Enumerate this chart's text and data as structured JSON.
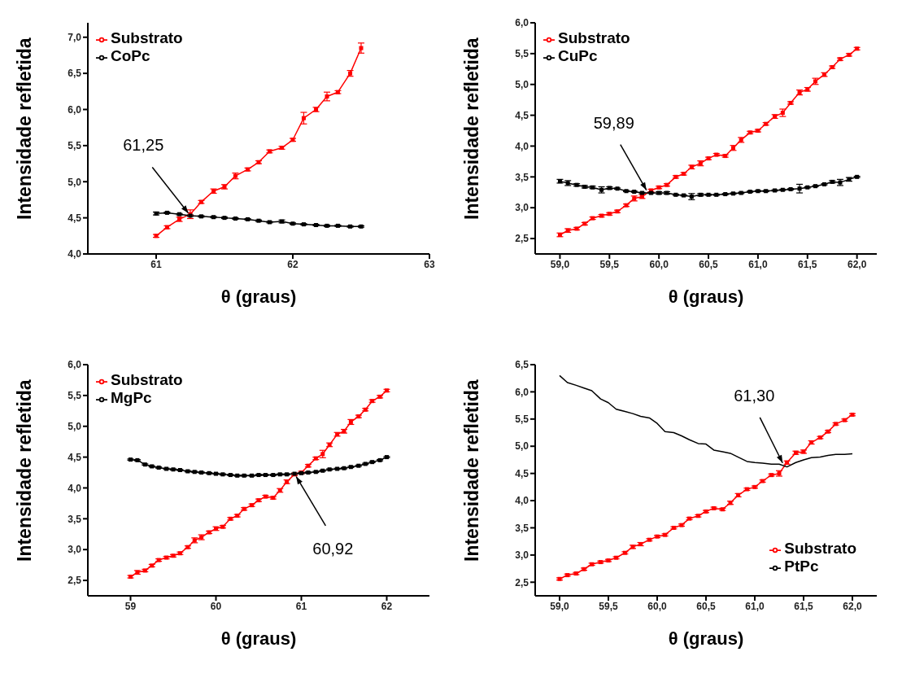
{
  "chart_data": [
    {
      "type": "line",
      "xlabel": "θ (graus)",
      "ylabel": "Intensidade refletida",
      "legend": "top left",
      "marker": "square",
      "line_style": "solid",
      "grid": false,
      "xlim": [
        60.5,
        63
      ],
      "xticks": [
        61,
        62,
        63
      ],
      "ylim": [
        4.0,
        7.2
      ],
      "yticks": [
        {
          "value": 4.0,
          "label": "4,0"
        },
        {
          "value": 4.5,
          "label": "4,5"
        },
        {
          "value": 5.0,
          "label": "5,0"
        },
        {
          "value": 5.5,
          "label": "5,5"
        },
        {
          "value": 6.0,
          "label": "6,0"
        },
        {
          "value": 6.5,
          "label": "6,5"
        },
        {
          "value": 7.0,
          "label": "7,0"
        }
      ],
      "x": [
        61,
        61.08,
        61.17,
        61.25,
        61.33,
        61.42,
        61.5,
        61.58,
        61.67,
        61.75,
        61.83,
        61.92,
        62,
        62.08,
        62.17,
        62.25,
        62.33,
        62.42,
        62.5
      ],
      "annotations": [
        {
          "text": "61,25",
          "x": 61.25,
          "y": 4.53
        }
      ],
      "series": [
        {
          "name": "Substrato",
          "color": "#ff0000",
          "values": [
            4.25,
            4.37,
            4.48,
            4.55,
            4.72,
            4.87,
            4.93,
            5.08,
            5.17,
            5.27,
            5.42,
            5.47,
            5.58,
            5.88,
            6.0,
            6.18,
            6.24,
            6.5,
            6.85
          ],
          "errors": [
            0.02,
            0.02,
            0.03,
            0.06,
            0.02,
            0.03,
            0.03,
            0.04,
            0.02,
            0.02,
            0.02,
            0.02,
            0.02,
            0.08,
            0.03,
            0.06,
            0.02,
            0.04,
            0.07
          ]
        },
        {
          "name": "CoPc",
          "color": "#000000",
          "values": [
            4.56,
            4.57,
            4.55,
            4.53,
            4.52,
            4.51,
            4.5,
            4.49,
            4.48,
            4.46,
            4.44,
            4.45,
            4.42,
            4.41,
            4.4,
            4.39,
            4.39,
            4.38,
            4.38
          ],
          "errors": [
            0.02,
            0.01,
            0.01,
            0.01,
            0.01,
            0.01,
            0.01,
            0.01,
            0.01,
            0.01,
            0.01,
            0.02,
            0.01,
            0.01,
            0.01,
            0.01,
            0.01,
            0.01,
            0.01
          ]
        }
      ]
    },
    {
      "type": "line",
      "xlabel": "θ (graus)",
      "ylabel": "Intensidade refletida",
      "legend": "top left",
      "marker": "square",
      "line_style": "solid",
      "grid": false,
      "xlim": [
        58.75,
        62.2
      ],
      "xticks": [
        {
          "value": 59,
          "label": "59,0"
        },
        {
          "value": 59.5,
          "label": "59,5"
        },
        {
          "value": 60,
          "label": "60,0"
        },
        {
          "value": 60.5,
          "label": "60,5"
        },
        {
          "value": 61,
          "label": "61,0"
        },
        {
          "value": 61.5,
          "label": "61,5"
        },
        {
          "value": 62,
          "label": "62,0"
        }
      ],
      "ylim": [
        2.25,
        6.0
      ],
      "yticks": [
        {
          "value": 2.5,
          "label": "2,5"
        },
        {
          "value": 3.0,
          "label": "3,0"
        },
        {
          "value": 3.5,
          "label": "3,5"
        },
        {
          "value": 4.0,
          "label": "4,0"
        },
        {
          "value": 4.5,
          "label": "4,5"
        },
        {
          "value": 5.0,
          "label": "5,0"
        },
        {
          "value": 5.5,
          "label": "5,5"
        },
        {
          "value": 6.0,
          "label": "6,0"
        }
      ],
      "x": [
        59,
        59.08,
        59.17,
        59.25,
        59.33,
        59.42,
        59.5,
        59.58,
        59.67,
        59.75,
        59.83,
        59.92,
        60,
        60.08,
        60.17,
        60.25,
        60.33,
        60.42,
        60.5,
        60.58,
        60.67,
        60.75,
        60.83,
        60.92,
        61,
        61.08,
        61.17,
        61.25,
        61.33,
        61.42,
        61.5,
        61.58,
        61.67,
        61.75,
        61.83,
        61.92,
        62
      ],
      "annotations": [
        {
          "text": "59,89",
          "x": 59.89,
          "y": 3.24
        }
      ],
      "series": [
        {
          "name": "Substrato",
          "color": "#ff0000",
          "values": [
            2.56,
            2.63,
            2.66,
            2.74,
            2.83,
            2.87,
            2.9,
            2.94,
            3.04,
            3.15,
            3.18,
            3.28,
            3.33,
            3.37,
            3.5,
            3.55,
            3.66,
            3.72,
            3.8,
            3.86,
            3.84,
            3.97,
            4.1,
            4.22,
            4.25,
            4.36,
            4.48,
            4.54,
            4.7,
            4.87,
            4.92,
            5.05,
            5.16,
            5.28,
            5.41,
            5.48,
            5.58
          ],
          "errors": [
            0.03,
            0.03,
            0.02,
            0.02,
            0.02,
            0.02,
            0.02,
            0.02,
            0.02,
            0.04,
            0.03,
            0.02,
            0.02,
            0.02,
            0.02,
            0.02,
            0.03,
            0.04,
            0.02,
            0.02,
            0.02,
            0.04,
            0.04,
            0.02,
            0.02,
            0.02,
            0.03,
            0.06,
            0.02,
            0.04,
            0.03,
            0.05,
            0.03,
            0.02,
            0.02,
            0.02,
            0.02
          ]
        },
        {
          "name": "CuPc",
          "color": "#000000",
          "values": [
            3.43,
            3.4,
            3.37,
            3.34,
            3.33,
            3.29,
            3.32,
            3.31,
            3.27,
            3.26,
            3.24,
            3.24,
            3.24,
            3.24,
            3.21,
            3.2,
            3.18,
            3.21,
            3.21,
            3.21,
            3.22,
            3.23,
            3.24,
            3.26,
            3.27,
            3.27,
            3.28,
            3.29,
            3.3,
            3.31,
            3.33,
            3.35,
            3.38,
            3.42,
            3.41,
            3.46,
            3.5
          ],
          "errors": [
            0.03,
            0.04,
            0.02,
            0.02,
            0.02,
            0.05,
            0.02,
            0.01,
            0.01,
            0.01,
            0.01,
            0.01,
            0.02,
            0.02,
            0.01,
            0.01,
            0.05,
            0.02,
            0.01,
            0.01,
            0.01,
            0.01,
            0.01,
            0.01,
            0.01,
            0.01,
            0.01,
            0.01,
            0.01,
            0.07,
            0.01,
            0.01,
            0.01,
            0.02,
            0.05,
            0.03,
            0.01
          ]
        }
      ]
    },
    {
      "type": "line",
      "xlabel": "θ (graus)",
      "ylabel": "Intensidade refletida",
      "legend": "top left",
      "marker": "square",
      "line_style": "solid",
      "grid": false,
      "xlim": [
        58.5,
        62.5
      ],
      "xticks": [
        59,
        60,
        61,
        62
      ],
      "ylim": [
        2.25,
        6.0
      ],
      "yticks": [
        {
          "value": 2.5,
          "label": "2,5"
        },
        {
          "value": 3.0,
          "label": "3,0"
        },
        {
          "value": 3.5,
          "label": "3,5"
        },
        {
          "value": 4.0,
          "label": "4,0"
        },
        {
          "value": 4.5,
          "label": "4,5"
        },
        {
          "value": 5.0,
          "label": "5,0"
        },
        {
          "value": 5.5,
          "label": "5,5"
        },
        {
          "value": 6.0,
          "label": "6,0"
        }
      ],
      "x": [
        59,
        59.08,
        59.17,
        59.25,
        59.33,
        59.42,
        59.5,
        59.58,
        59.67,
        59.75,
        59.83,
        59.92,
        60,
        60.08,
        60.17,
        60.25,
        60.33,
        60.42,
        60.5,
        60.58,
        60.67,
        60.75,
        60.83,
        60.92,
        61,
        61.08,
        61.17,
        61.25,
        61.33,
        61.42,
        61.5,
        61.58,
        61.67,
        61.75,
        61.83,
        61.92,
        62
      ],
      "annotations": [
        {
          "text": "60,92",
          "x": 60.92,
          "y": 4.23
        }
      ],
      "series": [
        {
          "name": "Substrato",
          "color": "#ff0000",
          "values": [
            2.56,
            2.63,
            2.66,
            2.74,
            2.83,
            2.87,
            2.9,
            2.94,
            3.04,
            3.15,
            3.2,
            3.28,
            3.34,
            3.37,
            3.5,
            3.55,
            3.66,
            3.72,
            3.8,
            3.86,
            3.84,
            3.96,
            4.1,
            4.22,
            4.25,
            4.36,
            4.48,
            4.55,
            4.7,
            4.87,
            4.92,
            5.07,
            5.16,
            5.27,
            5.41,
            5.48,
            5.58
          ],
          "errors": [
            0.02,
            0.03,
            0.02,
            0.02,
            0.02,
            0.02,
            0.02,
            0.02,
            0.02,
            0.04,
            0.04,
            0.02,
            0.03,
            0.02,
            0.02,
            0.02,
            0.02,
            0.02,
            0.02,
            0.02,
            0.02,
            0.03,
            0.03,
            0.02,
            0.02,
            0.02,
            0.02,
            0.06,
            0.03,
            0.03,
            0.03,
            0.04,
            0.02,
            0.02,
            0.02,
            0.02,
            0.02
          ]
        },
        {
          "name": "MgPc",
          "color": "#000000",
          "values": [
            4.46,
            4.45,
            4.38,
            4.35,
            4.33,
            4.31,
            4.3,
            4.29,
            4.27,
            4.26,
            4.25,
            4.24,
            4.23,
            4.22,
            4.21,
            4.2,
            4.2,
            4.2,
            4.21,
            4.21,
            4.21,
            4.22,
            4.22,
            4.23,
            4.24,
            4.25,
            4.26,
            4.28,
            4.3,
            4.31,
            4.32,
            4.34,
            4.36,
            4.39,
            4.42,
            4.45,
            4.5
          ],
          "errors": [
            0.01,
            0.01,
            0.01,
            0.01,
            0.01,
            0.01,
            0.01,
            0.01,
            0.01,
            0.01,
            0.01,
            0.01,
            0.01,
            0.01,
            0.01,
            0.01,
            0.01,
            0.01,
            0.01,
            0.01,
            0.01,
            0.01,
            0.01,
            0.01,
            0.01,
            0.01,
            0.01,
            0.01,
            0.01,
            0.01,
            0.01,
            0.01,
            0.01,
            0.01,
            0.01,
            0.01,
            0.01
          ]
        }
      ]
    },
    {
      "type": "line",
      "xlabel": "θ (graus)",
      "ylabel": "Intensidade refletida",
      "legend": "bottom right",
      "marker": "square",
      "line_style": "solid",
      "grid": false,
      "xlim": [
        58.75,
        62.25
      ],
      "xticks": [
        {
          "value": 59,
          "label": "59,0"
        },
        {
          "value": 59.5,
          "label": "59,5"
        },
        {
          "value": 60,
          "label": "60,0"
        },
        {
          "value": 60.5,
          "label": "60,5"
        },
        {
          "value": 61,
          "label": "61,0"
        },
        {
          "value": 61.5,
          "label": "61,5"
        },
        {
          "value": 62,
          "label": "62,0"
        }
      ],
      "ylim": [
        2.25,
        6.5
      ],
      "yticks": [
        {
          "value": 2.5,
          "label": "2,5"
        },
        {
          "value": 3.0,
          "label": "3,0"
        },
        {
          "value": 3.5,
          "label": "3,5"
        },
        {
          "value": 4.0,
          "label": "4,0"
        },
        {
          "value": 4.5,
          "label": "4,5"
        },
        {
          "value": 5.0,
          "label": "5,0"
        },
        {
          "value": 5.5,
          "label": "5,5"
        },
        {
          "value": 6.0,
          "label": "6,0"
        },
        {
          "value": 6.5,
          "label": "6,5"
        }
      ],
      "x": [
        59,
        59.08,
        59.17,
        59.25,
        59.33,
        59.42,
        59.5,
        59.58,
        59.67,
        59.75,
        59.83,
        59.92,
        60,
        60.08,
        60.17,
        60.25,
        60.33,
        60.42,
        60.5,
        60.58,
        60.67,
        60.75,
        60.83,
        60.92,
        61,
        61.08,
        61.17,
        61.25,
        61.33,
        61.42,
        61.5,
        61.58,
        61.67,
        61.75,
        61.83,
        61.92,
        62
      ],
      "annotations": [
        {
          "text": "61,30",
          "x": 61.3,
          "y": 4.64
        }
      ],
      "series": [
        {
          "name": "Substrato",
          "color": "#ff0000",
          "values": [
            2.56,
            2.63,
            2.66,
            2.74,
            2.83,
            2.87,
            2.9,
            2.95,
            3.04,
            3.15,
            3.2,
            3.28,
            3.34,
            3.37,
            3.5,
            3.55,
            3.67,
            3.72,
            3.8,
            3.86,
            3.84,
            3.96,
            4.1,
            4.21,
            4.25,
            4.36,
            4.47,
            4.5,
            4.7,
            4.88,
            4.9,
            5.07,
            5.16,
            5.27,
            5.41,
            5.48,
            5.58
          ],
          "errors": [
            0.02,
            0.02,
            0.02,
            0.02,
            0.02,
            0.02,
            0.02,
            0.02,
            0.02,
            0.03,
            0.03,
            0.02,
            0.02,
            0.02,
            0.02,
            0.02,
            0.02,
            0.02,
            0.02,
            0.02,
            0.02,
            0.03,
            0.03,
            0.02,
            0.02,
            0.02,
            0.02,
            0.05,
            0.03,
            0.03,
            0.03,
            0.03,
            0.02,
            0.02,
            0.02,
            0.02,
            0.02
          ]
        },
        {
          "name": "PtPc",
          "color": "#000000",
          "marker": "none",
          "values": [
            6.3,
            6.17,
            6.12,
            6.07,
            6.02,
            5.87,
            5.8,
            5.68,
            5.64,
            5.6,
            5.55,
            5.52,
            5.42,
            5.27,
            5.25,
            5.19,
            5.12,
            5.05,
            5.04,
            4.93,
            4.9,
            4.87,
            4.8,
            4.72,
            4.7,
            4.69,
            4.67,
            4.67,
            4.62,
            4.7,
            4.75,
            4.79,
            4.8,
            4.83,
            4.85,
            4.85,
            4.86
          ]
        }
      ]
    }
  ]
}
